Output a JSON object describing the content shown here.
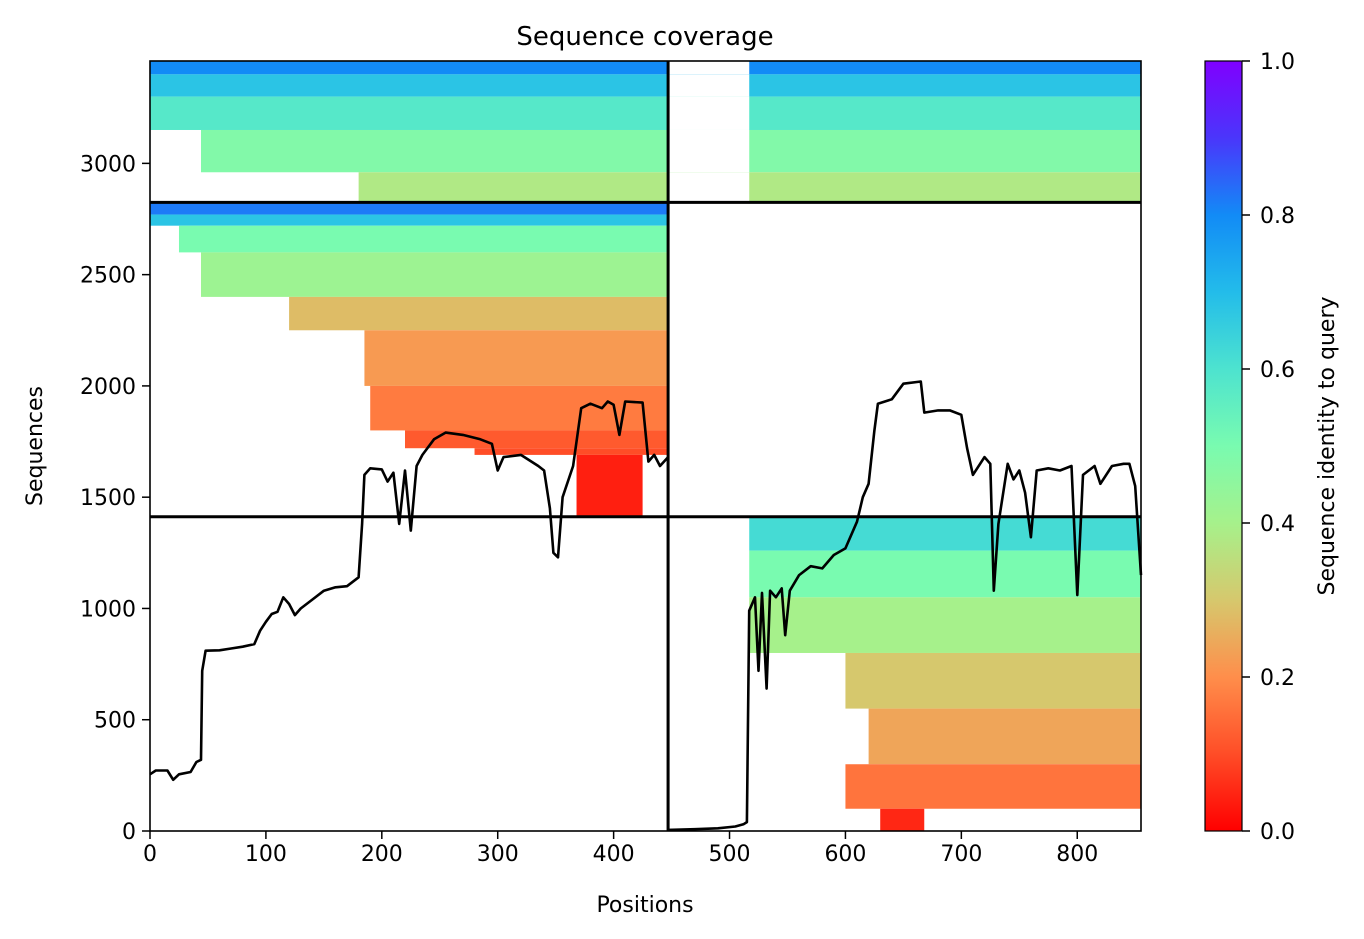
{
  "chart_data": {
    "type": "heatmap",
    "title": "Sequence coverage",
    "xlabel": "Positions",
    "ylabel": "Sequences",
    "xlim": [
      0,
      855
    ],
    "ylim": [
      0,
      3460
    ],
    "x_ticks": [
      0,
      100,
      200,
      300,
      400,
      500,
      600,
      700,
      800
    ],
    "y_ticks": [
      0,
      500,
      1000,
      1500,
      2000,
      2500,
      3000
    ],
    "colorbar": {
      "label": "Sequence identity to query",
      "ticks": [
        "0.0",
        "0.2",
        "0.4",
        "0.6",
        "0.8",
        "1.0"
      ],
      "range": [
        0.0,
        1.0
      ],
      "colormap": "rainbow_r"
    },
    "chain_boundary_x": 447,
    "chain_boundary_y": [
      1412,
      2825
    ],
    "blocks": [
      {
        "name": "chain A only",
        "x_range": [
          0,
          447
        ],
        "y_range": [
          1412,
          2825
        ],
        "bands": [
          {
            "y_from": 2825,
            "y_to": 2770,
            "identity": 0.82,
            "x_start": 0
          },
          {
            "y_from": 2770,
            "y_to": 2720,
            "identity": 0.68,
            "x_start": 0
          },
          {
            "y_from": 2720,
            "y_to": 2600,
            "identity": 0.5,
            "x_start": 25
          },
          {
            "y_from": 2600,
            "y_to": 2400,
            "identity": 0.42,
            "x_start": 44
          },
          {
            "y_from": 2400,
            "y_to": 2250,
            "identity": 0.28,
            "x_start": 120
          },
          {
            "y_from": 2250,
            "y_to": 2000,
            "identity": 0.22,
            "x_start": 185
          },
          {
            "y_from": 2000,
            "y_to": 1800,
            "identity": 0.17,
            "x_start": 190
          },
          {
            "y_from": 1800,
            "y_to": 1720,
            "identity": 0.12,
            "x_start": 220
          },
          {
            "y_from": 1720,
            "y_to": 1690,
            "identity": 0.1,
            "x_start": 280
          },
          {
            "y_from": 1690,
            "y_to": 1412,
            "identity": 0.04,
            "x_start": 368,
            "x_end": 425
          }
        ]
      },
      {
        "name": "paired",
        "x_range": [
          0,
          855
        ],
        "y_range": [
          2825,
          3460
        ],
        "bands": [
          {
            "y_from": 3460,
            "y_to": 3400,
            "identity": 0.8,
            "x_start": 0
          },
          {
            "y_from": 3400,
            "y_to": 3300,
            "identity": 0.68,
            "x_start": 0
          },
          {
            "y_from": 3300,
            "y_to": 3150,
            "identity": 0.58,
            "x_start": 0
          },
          {
            "y_from": 3150,
            "y_to": 2960,
            "identity": 0.48,
            "x_start": 44
          },
          {
            "y_from": 2960,
            "y_to": 2825,
            "identity": 0.38,
            "x_start": 180
          }
        ],
        "gap_x": [
          447,
          517
        ]
      },
      {
        "name": "chain B only",
        "x_range": [
          447,
          855
        ],
        "y_range": [
          0,
          1412
        ],
        "bands": [
          {
            "y_from": 1412,
            "y_to": 1260,
            "identity": 0.62,
            "x_start": 517
          },
          {
            "y_from": 1260,
            "y_to": 1050,
            "identity": 0.5,
            "x_start": 517
          },
          {
            "y_from": 1050,
            "y_to": 800,
            "identity": 0.4,
            "x_start": 517
          },
          {
            "y_from": 800,
            "y_to": 550,
            "identity": 0.3,
            "x_start": 600
          },
          {
            "y_from": 550,
            "y_to": 300,
            "identity": 0.24,
            "x_start": 620
          },
          {
            "y_from": 300,
            "y_to": 100,
            "identity": 0.16,
            "x_start": 600,
            "x_end": 855
          },
          {
            "y_from": 100,
            "y_to": 0,
            "identity": 0.05,
            "x_start": 630,
            "x_end": 668
          }
        ]
      }
    ],
    "coverage_line": [
      [
        0,
        255
      ],
      [
        5,
        272
      ],
      [
        15,
        272
      ],
      [
        20,
        230
      ],
      [
        25,
        255
      ],
      [
        35,
        265
      ],
      [
        40,
        310
      ],
      [
        44,
        320
      ],
      [
        45,
        720
      ],
      [
        48,
        810
      ],
      [
        60,
        812
      ],
      [
        70,
        820
      ],
      [
        80,
        828
      ],
      [
        90,
        840
      ],
      [
        95,
        900
      ],
      [
        100,
        940
      ],
      [
        105,
        975
      ],
      [
        110,
        985
      ],
      [
        115,
        1050
      ],
      [
        120,
        1020
      ],
      [
        125,
        970
      ],
      [
        130,
        1000
      ],
      [
        140,
        1040
      ],
      [
        150,
        1080
      ],
      [
        160,
        1095
      ],
      [
        170,
        1100
      ],
      [
        180,
        1140
      ],
      [
        183,
        1380
      ],
      [
        185,
        1600
      ],
      [
        190,
        1630
      ],
      [
        200,
        1625
      ],
      [
        205,
        1570
      ],
      [
        210,
        1610
      ],
      [
        215,
        1380
      ],
      [
        220,
        1620
      ],
      [
        225,
        1350
      ],
      [
        230,
        1640
      ],
      [
        235,
        1690
      ],
      [
        245,
        1760
      ],
      [
        255,
        1790
      ],
      [
        270,
        1780
      ],
      [
        285,
        1760
      ],
      [
        295,
        1740
      ],
      [
        300,
        1620
      ],
      [
        305,
        1680
      ],
      [
        320,
        1690
      ],
      [
        335,
        1640
      ],
      [
        340,
        1620
      ],
      [
        345,
        1450
      ],
      [
        348,
        1250
      ],
      [
        352,
        1230
      ],
      [
        356,
        1500
      ],
      [
        365,
        1640
      ],
      [
        372,
        1900
      ],
      [
        380,
        1920
      ],
      [
        390,
        1900
      ],
      [
        395,
        1930
      ],
      [
        400,
        1915
      ],
      [
        405,
        1780
      ],
      [
        410,
        1930
      ],
      [
        425,
        1925
      ],
      [
        430,
        1660
      ],
      [
        435,
        1690
      ],
      [
        440,
        1640
      ],
      [
        447,
        1680
      ],
      [
        447,
        5
      ],
      [
        470,
        8
      ],
      [
        490,
        12
      ],
      [
        505,
        20
      ],
      [
        512,
        30
      ],
      [
        515,
        40
      ],
      [
        517,
        990
      ],
      [
        522,
        1050
      ],
      [
        525,
        720
      ],
      [
        528,
        1070
      ],
      [
        532,
        640
      ],
      [
        535,
        1080
      ],
      [
        540,
        1050
      ],
      [
        545,
        1090
      ],
      [
        548,
        880
      ],
      [
        552,
        1080
      ],
      [
        560,
        1150
      ],
      [
        570,
        1190
      ],
      [
        580,
        1180
      ],
      [
        590,
        1240
      ],
      [
        600,
        1270
      ],
      [
        610,
        1390
      ],
      [
        615,
        1500
      ],
      [
        620,
        1560
      ],
      [
        625,
        1800
      ],
      [
        628,
        1920
      ],
      [
        640,
        1940
      ],
      [
        650,
        2010
      ],
      [
        665,
        2020
      ],
      [
        668,
        1880
      ],
      [
        680,
        1890
      ],
      [
        690,
        1890
      ],
      [
        700,
        1870
      ],
      [
        705,
        1720
      ],
      [
        710,
        1600
      ],
      [
        720,
        1680
      ],
      [
        725,
        1650
      ],
      [
        728,
        1080
      ],
      [
        732,
        1380
      ],
      [
        740,
        1650
      ],
      [
        745,
        1580
      ],
      [
        750,
        1620
      ],
      [
        755,
        1520
      ],
      [
        760,
        1320
      ],
      [
        765,
        1620
      ],
      [
        775,
        1630
      ],
      [
        785,
        1620
      ],
      [
        795,
        1640
      ],
      [
        800,
        1060
      ],
      [
        805,
        1600
      ],
      [
        815,
        1640
      ],
      [
        820,
        1560
      ],
      [
        830,
        1640
      ],
      [
        840,
        1650
      ],
      [
        845,
        1650
      ],
      [
        850,
        1550
      ],
      [
        855,
        1150
      ]
    ]
  }
}
